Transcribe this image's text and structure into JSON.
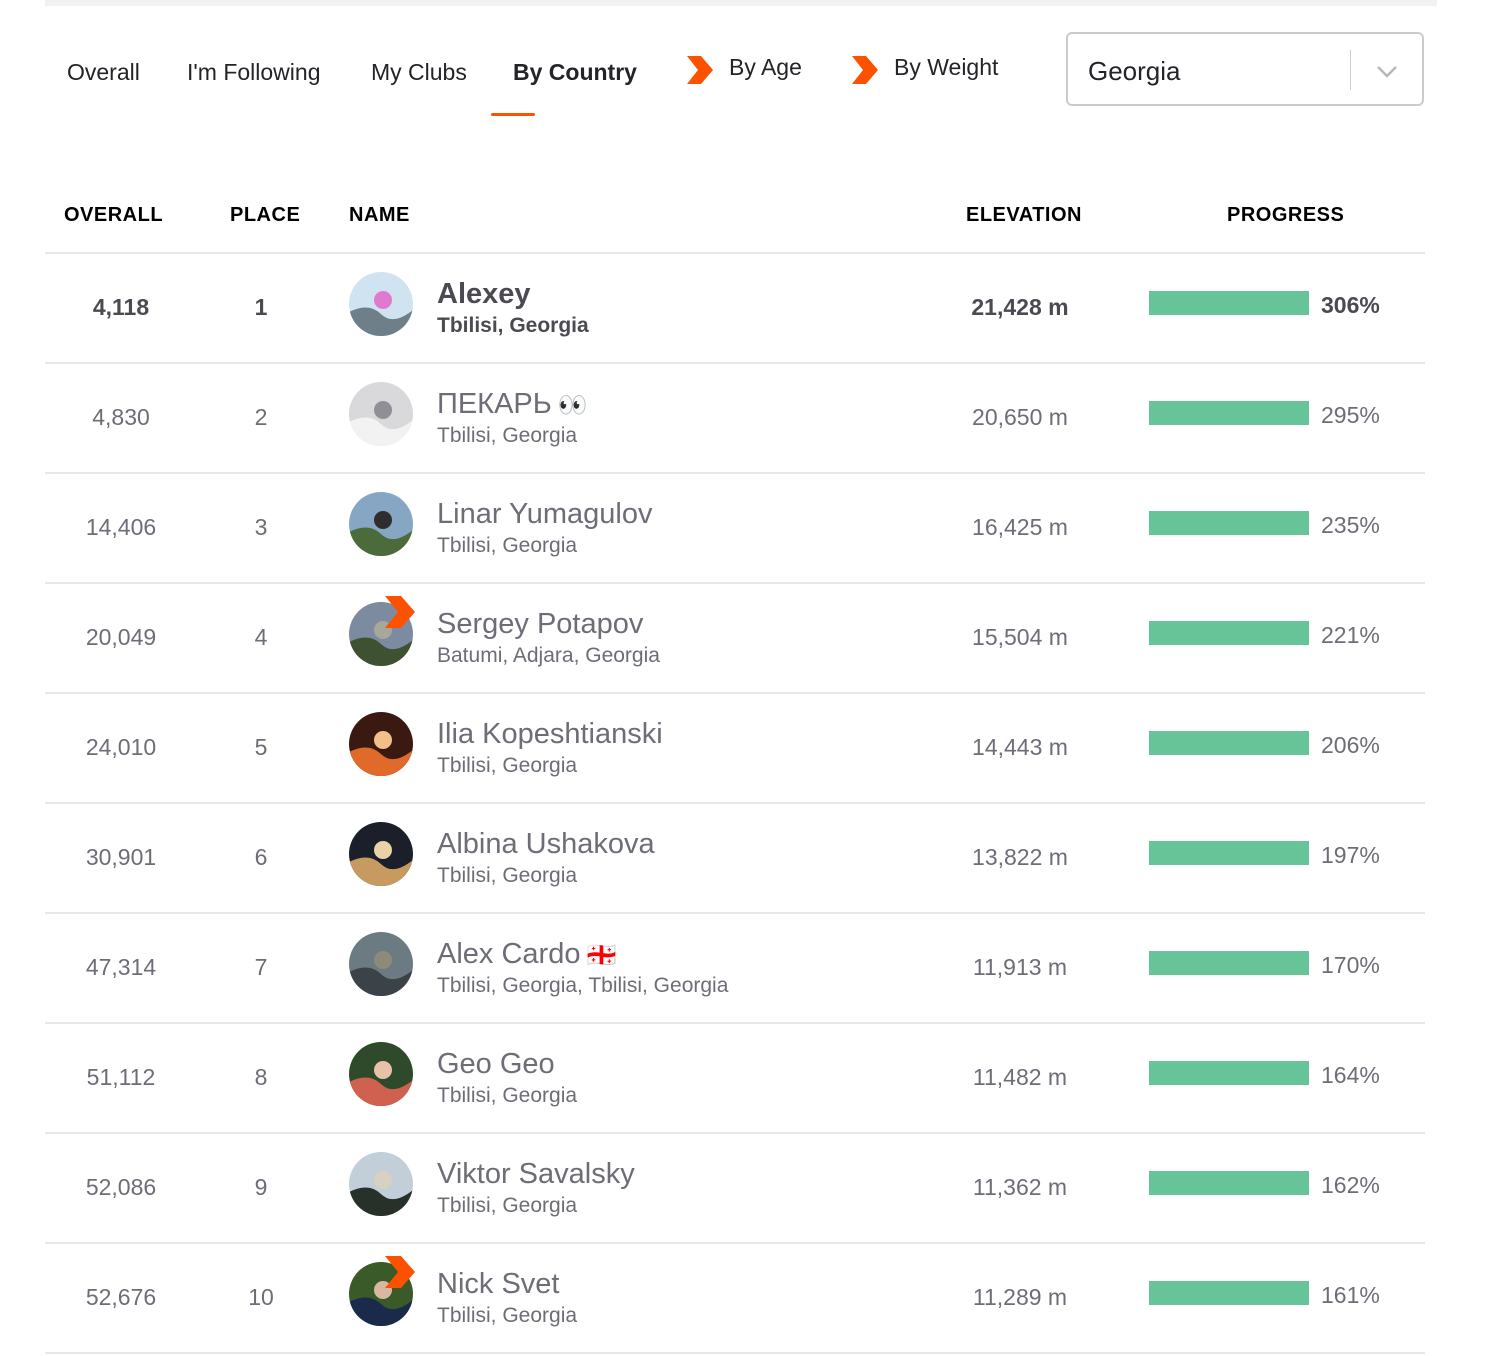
{
  "tabs": [
    {
      "label": "Overall"
    },
    {
      "label": "I'm Following"
    },
    {
      "label": "My Clubs"
    },
    {
      "label": "By Country",
      "active": true
    },
    {
      "label": "By Age",
      "premium": true
    },
    {
      "label": "By Weight",
      "premium": true
    }
  ],
  "country_select": {
    "value": "Georgia"
  },
  "columns": {
    "overall": "OVERALL",
    "place": "PLACE",
    "name": "NAME",
    "elevation": "ELEVATION",
    "progress": "PROGRESS"
  },
  "colors": {
    "accent": "#fc5200",
    "progress_bar": "#66c498",
    "divider": "#e6e6eb"
  },
  "rows": [
    {
      "overall": "4,118",
      "place": "1",
      "name": "Alexey",
      "emoji": "",
      "location": "Tbilisi, Georgia",
      "elevation": "21,428 m",
      "progress": "306%",
      "current_user": true,
      "subscriber": false
    },
    {
      "overall": "4,830",
      "place": "2",
      "name": "ПЕКАРЬ",
      "emoji": "👀",
      "location": "Tbilisi, Georgia",
      "elevation": "20,650 m",
      "progress": "295%",
      "subscriber": false
    },
    {
      "overall": "14,406",
      "place": "3",
      "name": "Linar Yumagulov",
      "emoji": "",
      "location": "Tbilisi, Georgia",
      "elevation": "16,425 m",
      "progress": "235%",
      "subscriber": false
    },
    {
      "overall": "20,049",
      "place": "4",
      "name": "Sergey Potapov",
      "emoji": "",
      "location": "Batumi, Adjara, Georgia",
      "elevation": "15,504 m",
      "progress": "221%",
      "subscriber": true
    },
    {
      "overall": "24,010",
      "place": "5",
      "name": "Ilia Kopeshtianski",
      "emoji": "",
      "location": "Tbilisi, Georgia",
      "elevation": "14,443 m",
      "progress": "206%",
      "subscriber": false
    },
    {
      "overall": "30,901",
      "place": "6",
      "name": "Albina Ushakova",
      "emoji": "",
      "location": "Tbilisi, Georgia",
      "elevation": "13,822 m",
      "progress": "197%",
      "subscriber": false
    },
    {
      "overall": "47,314",
      "place": "7",
      "name": "Alex Cardo",
      "emoji": "🇬🇪",
      "location": "Tbilisi, Georgia, Tbilisi, Georgia",
      "elevation": "11,913 m",
      "progress": "170%",
      "subscriber": false
    },
    {
      "overall": "51,112",
      "place": "8",
      "name": "Geo Geo",
      "emoji": "",
      "location": "Tbilisi, Georgia",
      "elevation": "11,482 m",
      "progress": "164%",
      "subscriber": false
    },
    {
      "overall": "52,086",
      "place": "9",
      "name": "Viktor Savalsky",
      "emoji": "",
      "location": "Tbilisi, Georgia",
      "elevation": "11,362 m",
      "progress": "162%",
      "subscriber": false
    },
    {
      "overall": "52,676",
      "place": "10",
      "name": "Nick Svet",
      "emoji": "",
      "location": "Tbilisi, Georgia",
      "elevation": "11,289 m",
      "progress": "161%",
      "subscriber": true
    }
  ]
}
